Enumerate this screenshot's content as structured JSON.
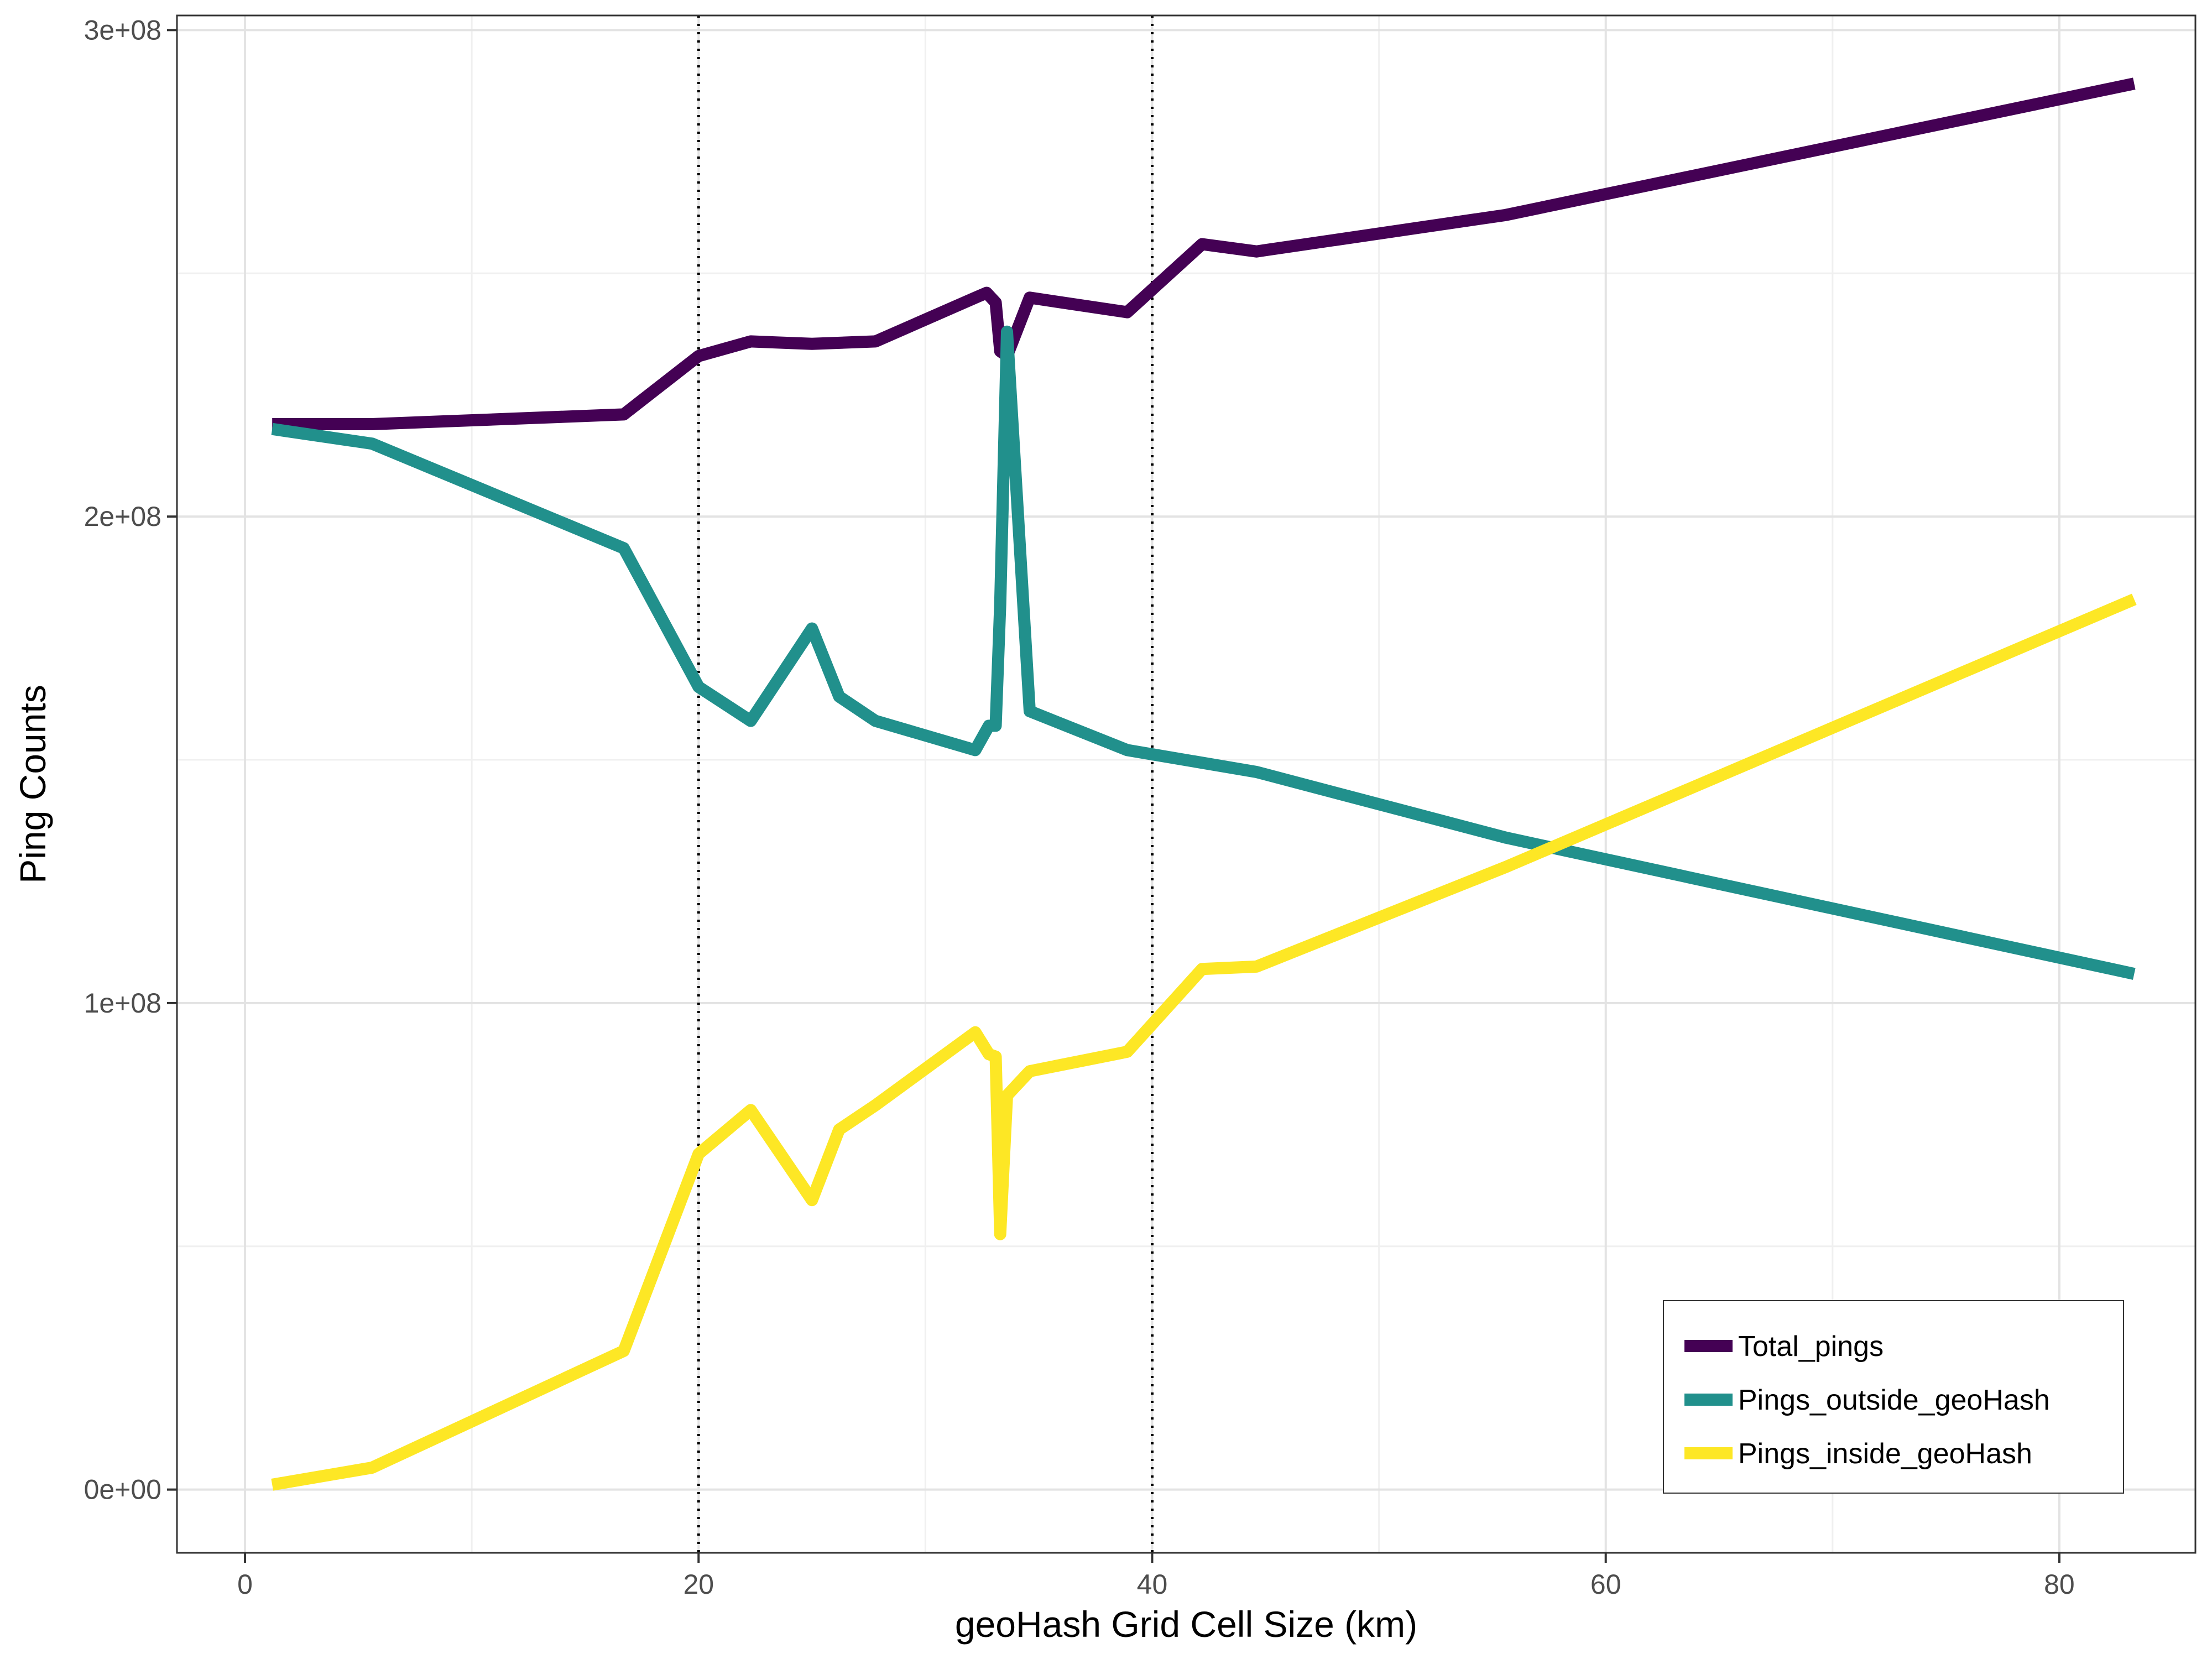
{
  "chart_data": {
    "type": "line",
    "title": "",
    "xlabel": "geoHash Grid Cell Size (km)",
    "ylabel": "Ping Counts",
    "xlim": [
      -3,
      86
    ],
    "ylim": [
      -13000000,
      303000000
    ],
    "x_ticks": [
      0,
      20,
      40,
      60,
      80
    ],
    "x_tick_labels": [
      "0",
      "20",
      "40",
      "60",
      "80"
    ],
    "x_minor_ticks": [
      10,
      30,
      50,
      70
    ],
    "y_ticks": [
      0,
      100000000,
      200000000,
      300000000
    ],
    "y_tick_labels": [
      "0e+00",
      "1e+08",
      "2e+08",
      "3e+08"
    ],
    "y_minor_ticks": [
      50000000,
      150000000,
      250000000
    ],
    "vlines": [
      20,
      40
    ],
    "grid": true,
    "legend_position": "bottom-right",
    "series": [
      {
        "name": "Total_pings",
        "color": "#440154",
        "points": [
          [
            1.2,
            219000000
          ],
          [
            5.6,
            219000000
          ],
          [
            16.7,
            221000000
          ],
          [
            20,
            233000000
          ],
          [
            22.3,
            236000000
          ],
          [
            25,
            235500000
          ],
          [
            27.8,
            236000000
          ],
          [
            32.2,
            245000000
          ],
          [
            32.7,
            246000000
          ],
          [
            33.1,
            244000000
          ],
          [
            33.3,
            234000000
          ],
          [
            33.6,
            233000000
          ],
          [
            34.6,
            245000000
          ],
          [
            38.9,
            242000000
          ],
          [
            42.2,
            256000000
          ],
          [
            44.6,
            254500000
          ],
          [
            55.6,
            262000000
          ],
          [
            83.3,
            289000000
          ]
        ]
      },
      {
        "name": "Pings_outside_geoHash",
        "color": "#21908C",
        "points": [
          [
            1.2,
            218000000
          ],
          [
            5.6,
            215000000
          ],
          [
            16.7,
            193500000
          ],
          [
            20,
            165000000
          ],
          [
            22.3,
            158000000
          ],
          [
            25,
            177000000
          ],
          [
            26.2,
            163000000
          ],
          [
            27.8,
            158000000
          ],
          [
            32.2,
            152000000
          ],
          [
            32.8,
            157000000
          ],
          [
            33.1,
            157000000
          ],
          [
            33.3,
            182000000
          ],
          [
            33.6,
            238000000
          ],
          [
            34.6,
            160000000
          ],
          [
            38.9,
            152000000
          ],
          [
            44.6,
            147500000
          ],
          [
            55.6,
            134000000
          ],
          [
            83.3,
            106000000
          ]
        ]
      },
      {
        "name": "Pings_inside_geoHash",
        "color": "#FDE725",
        "points": [
          [
            1.2,
            1000000
          ],
          [
            5.6,
            4500000
          ],
          [
            16.7,
            28500000
          ],
          [
            20,
            69000000
          ],
          [
            22.3,
            78000000
          ],
          [
            25,
            59500000
          ],
          [
            26.2,
            74000000
          ],
          [
            27.8,
            79000000
          ],
          [
            32.2,
            94000000
          ],
          [
            32.8,
            89500000
          ],
          [
            33.1,
            89000000
          ],
          [
            33.3,
            52500000
          ],
          [
            33.6,
            81000000
          ],
          [
            34.6,
            86000000
          ],
          [
            38.9,
            90000000
          ],
          [
            42.2,
            107000000
          ],
          [
            44.6,
            107500000
          ],
          [
            55.6,
            128000000
          ],
          [
            83.3,
            183000000
          ]
        ]
      }
    ]
  }
}
